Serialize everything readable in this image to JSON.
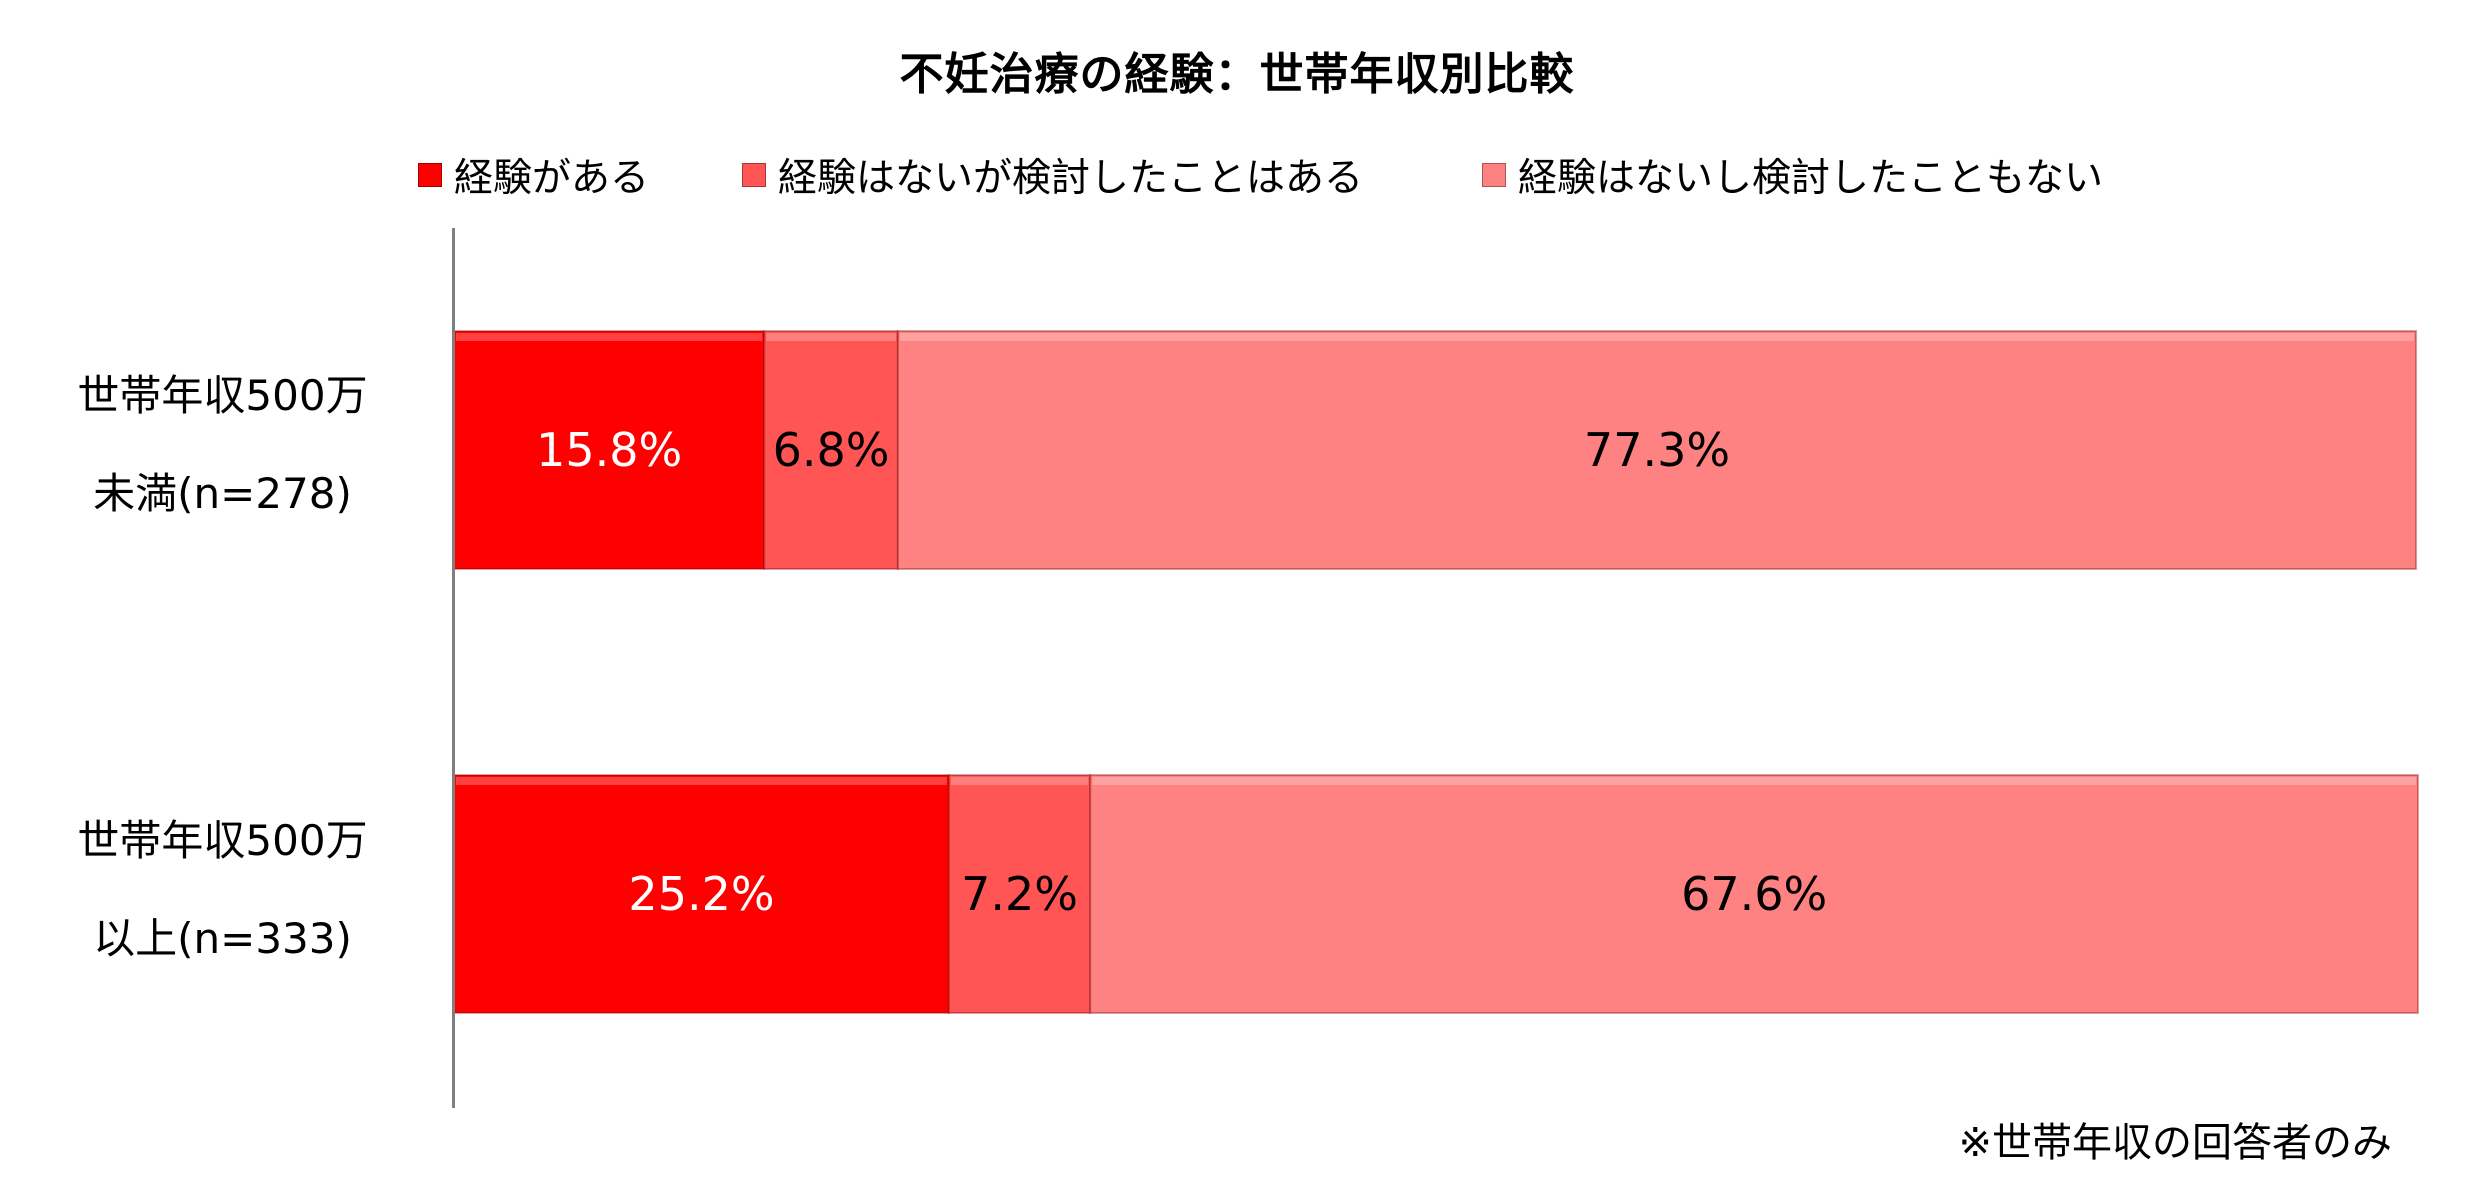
{
  "chart_data": {
    "type": "bar",
    "orientation": "horizontal",
    "stacked": "100%",
    "title": "不妊治療の経験：世帯年収別比較",
    "categories": [
      {
        "line1": "世帯年収500万",
        "line2": "未満(n=278)"
      },
      {
        "line1": "世帯年収500万",
        "line2": "以上(n=333)"
      }
    ],
    "series": [
      {
        "name": "経験がある",
        "color": "#ff0000",
        "values": [
          15.8,
          25.2
        ],
        "labels": [
          "15.8%",
          "25.2%"
        ],
        "label_color": "#ffffff"
      },
      {
        "name": "経験はないが検討したことはある",
        "color": "#ff5555",
        "values": [
          6.8,
          7.2
        ],
        "labels": [
          "6.8%",
          "7.2%"
        ],
        "label_color": "#000000"
      },
      {
        "name": "経験はないし検討したこともない",
        "color": "#ff8282",
        "values": [
          77.3,
          67.6
        ],
        "labels": [
          "77.3%",
          "67.6%"
        ],
        "label_color": "#000000"
      }
    ],
    "xlim": [
      0,
      100
    ],
    "legend_position": "top",
    "grid": false,
    "footnote": "※世帯年収の回答者のみ"
  }
}
